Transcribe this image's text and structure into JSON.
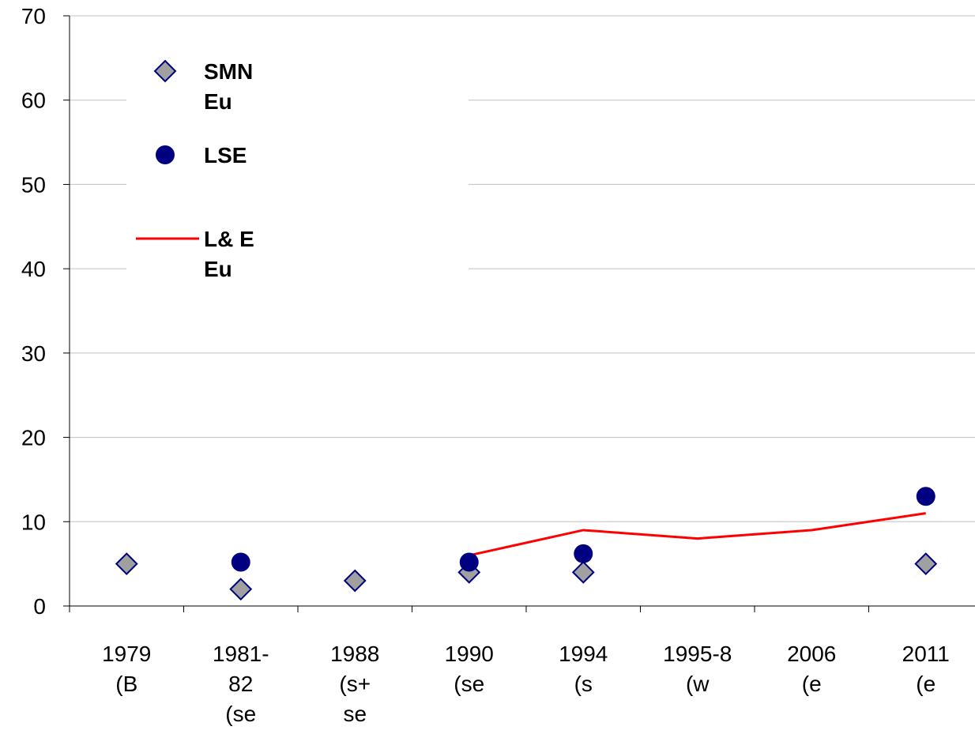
{
  "chart_data": {
    "type": "line",
    "categories": [
      "1979\n(B",
      "1981-\n82\n(se",
      "1988\n(s+\nse",
      "1990\n(se",
      "1994\n(s",
      "1995-8\n(w",
      "2006\n(e",
      "2011\n(e"
    ],
    "series": [
      {
        "name": "SMN\nEu",
        "color": "#a0a0a0",
        "marker": "diamond",
        "line": false,
        "values": [
          5,
          2,
          3,
          4,
          4,
          null,
          null,
          5
        ]
      },
      {
        "name": "LSE",
        "color": "#000080",
        "marker": "circle",
        "line": false,
        "values": [
          null,
          5.2,
          null,
          5.2,
          6.2,
          null,
          null,
          13
        ]
      },
      {
        "name": "L& E\nEu",
        "color": "#ff0000",
        "marker": "none",
        "line": true,
        "values": [
          null,
          null,
          null,
          6,
          9,
          8,
          9,
          11
        ]
      }
    ],
    "ylim": [
      0,
      70
    ],
    "yticks": [
      0,
      10,
      20,
      30,
      40,
      50,
      60,
      70
    ],
    "grid": true
  }
}
